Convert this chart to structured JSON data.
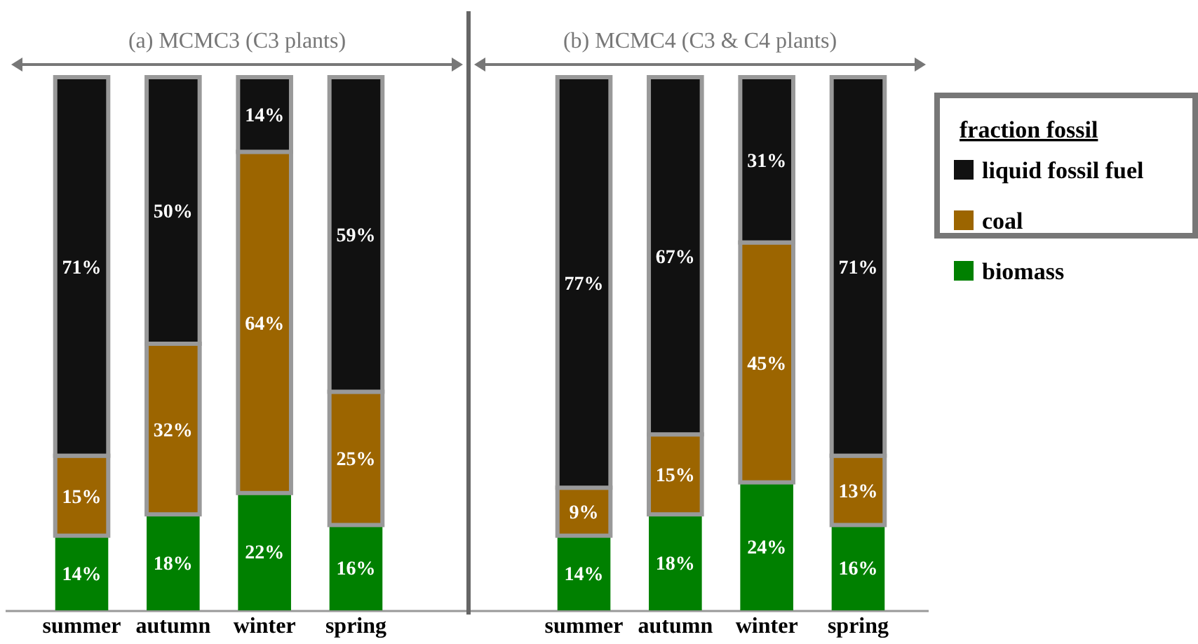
{
  "chart_data": [
    {
      "type": "bar",
      "stacked": true,
      "title": "(a) MCMC3 (C3 plants)",
      "categories": [
        "summer",
        "autumn",
        "winter",
        "spring"
      ],
      "ylim": [
        0,
        100
      ],
      "legend": false,
      "series": [
        {
          "color": "#008000",
          "values": [
            14,
            18,
            22,
            16
          ],
          "value_labels": [
            "14%",
            "18%",
            "22%",
            "16%"
          ]
        },
        {
          "color": "#9c6500",
          "values": [
            15,
            32,
            64,
            25
          ],
          "value_labels": [
            "15%",
            "32%",
            "64%",
            "25%"
          ]
        },
        {
          "color": "#111111",
          "values": [
            71,
            50,
            14,
            59
          ],
          "value_labels": [
            "71%",
            "50%",
            "14%",
            "59%"
          ]
        }
      ]
    },
    {
      "type": "bar",
      "stacked": true,
      "title": "(b) MCMC4 (C3 & C4 plants)",
      "categories": [
        "summer",
        "autumn",
        "winter",
        "spring"
      ],
      "ylim": [
        0,
        100
      ],
      "legend": "right",
      "legend_title": "fraction fossil",
      "series": [
        {
          "name": "biomass",
          "color": "#008000",
          "values": [
            14,
            18,
            24,
            16
          ],
          "value_labels": [
            "14%",
            "18%",
            "24%",
            "16%"
          ]
        },
        {
          "name": "coal",
          "color": "#9c6500",
          "values": [
            9,
            15,
            45,
            13
          ],
          "value_labels": [
            "9%",
            "15%",
            "45%",
            "13%"
          ]
        },
        {
          "name": "liquid fossil fuel",
          "color": "#111111",
          "values": [
            77,
            67,
            31,
            71
          ],
          "value_labels": [
            "77%",
            "67%",
            "31%",
            "71%"
          ]
        }
      ]
    }
  ]
}
